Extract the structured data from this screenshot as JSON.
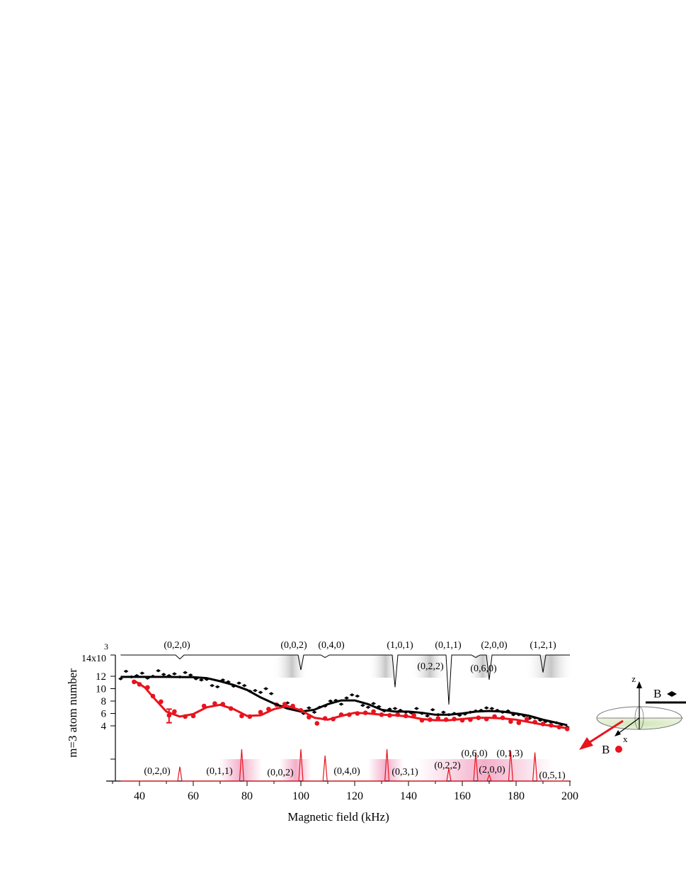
{
  "chart_data": {
    "type": "scatter",
    "xlabel": "Magnetic field (kHz)",
    "ylabel": "m=3 atom number",
    "ylabel_multiplier": "14x10",
    "ylabel_multiplier_exp": "3",
    "xlim": [
      30,
      200
    ],
    "ylim": [
      0,
      14
    ],
    "x_ticks": [
      40,
      60,
      80,
      100,
      120,
      140,
      160,
      180,
      200
    ],
    "y_ticks": [
      4,
      6,
      8,
      10,
      12
    ],
    "colors": {
      "black": "#000000",
      "red": "#e8131d",
      "pink": "#f2a6c4"
    },
    "series": [
      {
        "color": "black",
        "marker": "diamond",
        "points": [
          [
            33,
            11.6
          ],
          [
            35,
            12.8
          ],
          [
            37,
            11.9
          ],
          [
            39,
            12.1
          ],
          [
            41,
            12.5
          ],
          [
            43,
            11.7
          ],
          [
            45,
            12.0
          ],
          [
            47,
            12.9
          ],
          [
            49,
            12.3
          ],
          [
            51,
            12.1
          ],
          [
            53,
            12.4
          ],
          [
            55,
            11.9
          ],
          [
            57,
            12.6
          ],
          [
            59,
            12.2
          ],
          [
            61,
            11.6
          ],
          [
            63,
            11.4
          ],
          [
            65,
            11.5
          ],
          [
            67,
            10.5
          ],
          [
            69,
            10.3
          ],
          [
            71,
            11.4
          ],
          [
            73,
            11.1
          ],
          [
            75,
            10.4
          ],
          [
            77,
            10.9
          ],
          [
            79,
            10.5
          ],
          [
            81,
            9.6
          ],
          [
            83,
            9.7
          ],
          [
            85,
            9.4
          ],
          [
            87,
            10.0
          ],
          [
            89,
            9.2
          ],
          [
            91,
            7.5
          ],
          [
            93,
            7.1
          ],
          [
            95,
            7.7
          ],
          [
            97,
            7.0
          ],
          [
            99,
            6.5
          ],
          [
            101,
            6.0
          ],
          [
            103,
            6.9
          ],
          [
            105,
            6.2
          ],
          [
            107,
            7.0
          ],
          [
            109,
            7.2
          ],
          [
            111,
            8.0
          ],
          [
            113,
            8.1
          ],
          [
            115,
            7.5
          ],
          [
            117,
            8.5
          ],
          [
            119,
            9.0
          ],
          [
            121,
            8.8
          ],
          [
            123,
            7.3
          ],
          [
            125,
            7.0
          ],
          [
            127,
            7.6
          ],
          [
            129,
            7.1
          ],
          [
            131,
            6.4
          ],
          [
            133,
            6.7
          ],
          [
            135,
            6.8
          ],
          [
            137,
            6.5
          ],
          [
            139,
            6.2
          ],
          [
            141,
            6.1
          ],
          [
            143,
            6.8
          ],
          [
            145,
            6.0
          ],
          [
            147,
            5.6
          ],
          [
            149,
            6.6
          ],
          [
            151,
            5.8
          ],
          [
            153,
            6.2
          ],
          [
            155,
            5.8
          ],
          [
            157,
            6.0
          ],
          [
            159,
            5.7
          ],
          [
            161,
            5.9
          ],
          [
            163,
            6.2
          ],
          [
            165,
            6.4
          ],
          [
            167,
            6.5
          ],
          [
            169,
            6.9
          ],
          [
            171,
            6.8
          ],
          [
            173,
            6.5
          ],
          [
            175,
            6.2
          ],
          [
            177,
            6.4
          ],
          [
            179,
            5.8
          ],
          [
            181,
            5.8
          ],
          [
            183,
            5.6
          ],
          [
            185,
            5.2
          ],
          [
            187,
            5.3
          ],
          [
            189,
            4.9
          ],
          [
            191,
            4.7
          ],
          [
            193,
            4.6
          ],
          [
            195,
            4.5
          ],
          [
            197,
            4.2
          ],
          [
            199,
            3.8
          ]
        ],
        "fit": [
          [
            33,
            11.9
          ],
          [
            40,
            11.9
          ],
          [
            50,
            11.9
          ],
          [
            60,
            11.85
          ],
          [
            65,
            11.7
          ],
          [
            70,
            11.2
          ],
          [
            75,
            10.6
          ],
          [
            80,
            9.8
          ],
          [
            85,
            8.6
          ],
          [
            90,
            7.6
          ],
          [
            95,
            6.8
          ],
          [
            100,
            6.3
          ],
          [
            105,
            6.6
          ],
          [
            110,
            7.5
          ],
          [
            115,
            8.1
          ],
          [
            120,
            8.1
          ],
          [
            125,
            7.5
          ],
          [
            130,
            6.6
          ],
          [
            135,
            6.3
          ],
          [
            140,
            6.3
          ],
          [
            145,
            6.1
          ],
          [
            150,
            5.8
          ],
          [
            155,
            5.8
          ],
          [
            160,
            6.0
          ],
          [
            165,
            6.3
          ],
          [
            170,
            6.4
          ],
          [
            175,
            6.3
          ],
          [
            180,
            6.0
          ],
          [
            185,
            5.6
          ],
          [
            190,
            5.0
          ],
          [
            195,
            4.5
          ],
          [
            199,
            4.1
          ]
        ]
      },
      {
        "color": "red",
        "marker": "circle",
        "error_bar": {
          "x": 51,
          "y": 5.7,
          "low": 4.5,
          "high": 6.7
        },
        "points": [
          [
            38,
            11.1
          ],
          [
            40,
            10.7
          ],
          [
            43,
            10.2
          ],
          [
            45,
            8.8
          ],
          [
            48,
            7.9
          ],
          [
            51,
            5.7
          ],
          [
            53,
            6.3
          ],
          [
            57,
            5.5
          ],
          [
            60,
            5.6
          ],
          [
            64,
            7.2
          ],
          [
            68,
            7.6
          ],
          [
            71,
            7.5
          ],
          [
            74,
            6.8
          ],
          [
            78,
            5.6
          ],
          [
            81,
            5.5
          ],
          [
            85,
            6.2
          ],
          [
            88,
            6.7
          ],
          [
            91,
            7.4
          ],
          [
            94,
            7.5
          ],
          [
            97,
            7.2
          ],
          [
            100,
            6.5
          ],
          [
            103,
            5.4
          ],
          [
            106,
            4.4
          ],
          [
            109,
            5.2
          ],
          [
            112,
            5.1
          ],
          [
            115,
            5.8
          ],
          [
            118,
            5.8
          ],
          [
            121,
            6.0
          ],
          [
            124,
            6.1
          ],
          [
            127,
            6.3
          ],
          [
            130,
            5.8
          ],
          [
            133,
            5.7
          ],
          [
            136,
            5.8
          ],
          [
            139,
            5.6
          ],
          [
            142,
            5.7
          ],
          [
            145,
            4.9
          ],
          [
            148,
            5.0
          ],
          [
            151,
            5.2
          ],
          [
            154,
            5.0
          ],
          [
            157,
            5.1
          ],
          [
            160,
            4.9
          ],
          [
            163,
            5.0
          ],
          [
            166,
            5.3
          ],
          [
            169,
            5.1
          ],
          [
            172,
            5.5
          ],
          [
            175,
            5.3
          ],
          [
            178,
            4.7
          ],
          [
            181,
            4.5
          ],
          [
            184,
            5.1
          ],
          [
            187,
            4.6
          ],
          [
            190,
            4.3
          ],
          [
            193,
            4.1
          ],
          [
            196,
            3.8
          ],
          [
            199,
            3.5
          ]
        ],
        "fit": [
          [
            38,
            11.3
          ],
          [
            42,
            10.2
          ],
          [
            46,
            8.2
          ],
          [
            50,
            6.3
          ],
          [
            55,
            5.5
          ],
          [
            60,
            5.9
          ],
          [
            65,
            7.0
          ],
          [
            70,
            7.4
          ],
          [
            75,
            6.7
          ],
          [
            80,
            5.6
          ],
          [
            85,
            5.7
          ],
          [
            90,
            6.7
          ],
          [
            95,
            7.2
          ],
          [
            100,
            6.5
          ],
          [
            105,
            5.3
          ],
          [
            110,
            5.0
          ],
          [
            115,
            5.6
          ],
          [
            120,
            6.1
          ],
          [
            125,
            6.0
          ],
          [
            130,
            5.8
          ],
          [
            135,
            5.7
          ],
          [
            140,
            5.5
          ],
          [
            145,
            5.1
          ],
          [
            150,
            4.9
          ],
          [
            155,
            4.9
          ],
          [
            160,
            5.1
          ],
          [
            165,
            5.3
          ],
          [
            170,
            5.3
          ],
          [
            175,
            5.2
          ],
          [
            180,
            5.0
          ],
          [
            185,
            4.6
          ],
          [
            190,
            4.2
          ],
          [
            195,
            3.9
          ],
          [
            199,
            3.6
          ]
        ]
      }
    ],
    "top_resonances": [
      {
        "label": "(0,2,0)",
        "x": 55,
        "depth": 0.8
      },
      {
        "label": "(0,0,2)",
        "x": 100,
        "depth": 3.0
      },
      {
        "label": "(0,4,0)",
        "x": 109,
        "depth": 0.5
      },
      {
        "label": "(1,0,1)",
        "x": 135,
        "depth": 6.5
      },
      {
        "label": "(0,1,1)",
        "x": 155,
        "depth": 10.0
      },
      {
        "label": "(0,2,2)",
        "x": 154,
        "depth": 0
      },
      {
        "label": "(0,6,0)",
        "x": 165,
        "depth": 0.5
      },
      {
        "label": "(2,0,0)",
        "x": 170,
        "depth": 5.0
      },
      {
        "label": "(1,2,1)",
        "x": 190,
        "depth": 3.5
      }
    ],
    "bottom_resonances": [
      {
        "label": "(0,2,0)",
        "x": 55,
        "height": 0.45
      },
      {
        "label": "(0,1,1)",
        "x": 78,
        "height": 1.0
      },
      {
        "label": "(0,0,2)",
        "x": 100,
        "height": 1.0
      },
      {
        "label": "(0,4,0)",
        "x": 109,
        "height": 0.8
      },
      {
        "label": "(0,3,1)",
        "x": 132,
        "height": 1.0
      },
      {
        "label": "(0,2,2)",
        "x": 155,
        "height": 0.4
      },
      {
        "label": "(0,6,0)",
        "x": 165,
        "height": 0.9
      },
      {
        "label": "(2,0,0)",
        "x": 170,
        "height": 0.2
      },
      {
        "label": "(0,1,3)",
        "x": 178,
        "height": 0.95
      },
      {
        "label": "(0,5,1)",
        "x": 187,
        "height": 0.9
      }
    ],
    "inset": {
      "z_label": "z",
      "x_label": "x",
      "b_label_top": "B",
      "b_label_bottom": "B"
    }
  }
}
